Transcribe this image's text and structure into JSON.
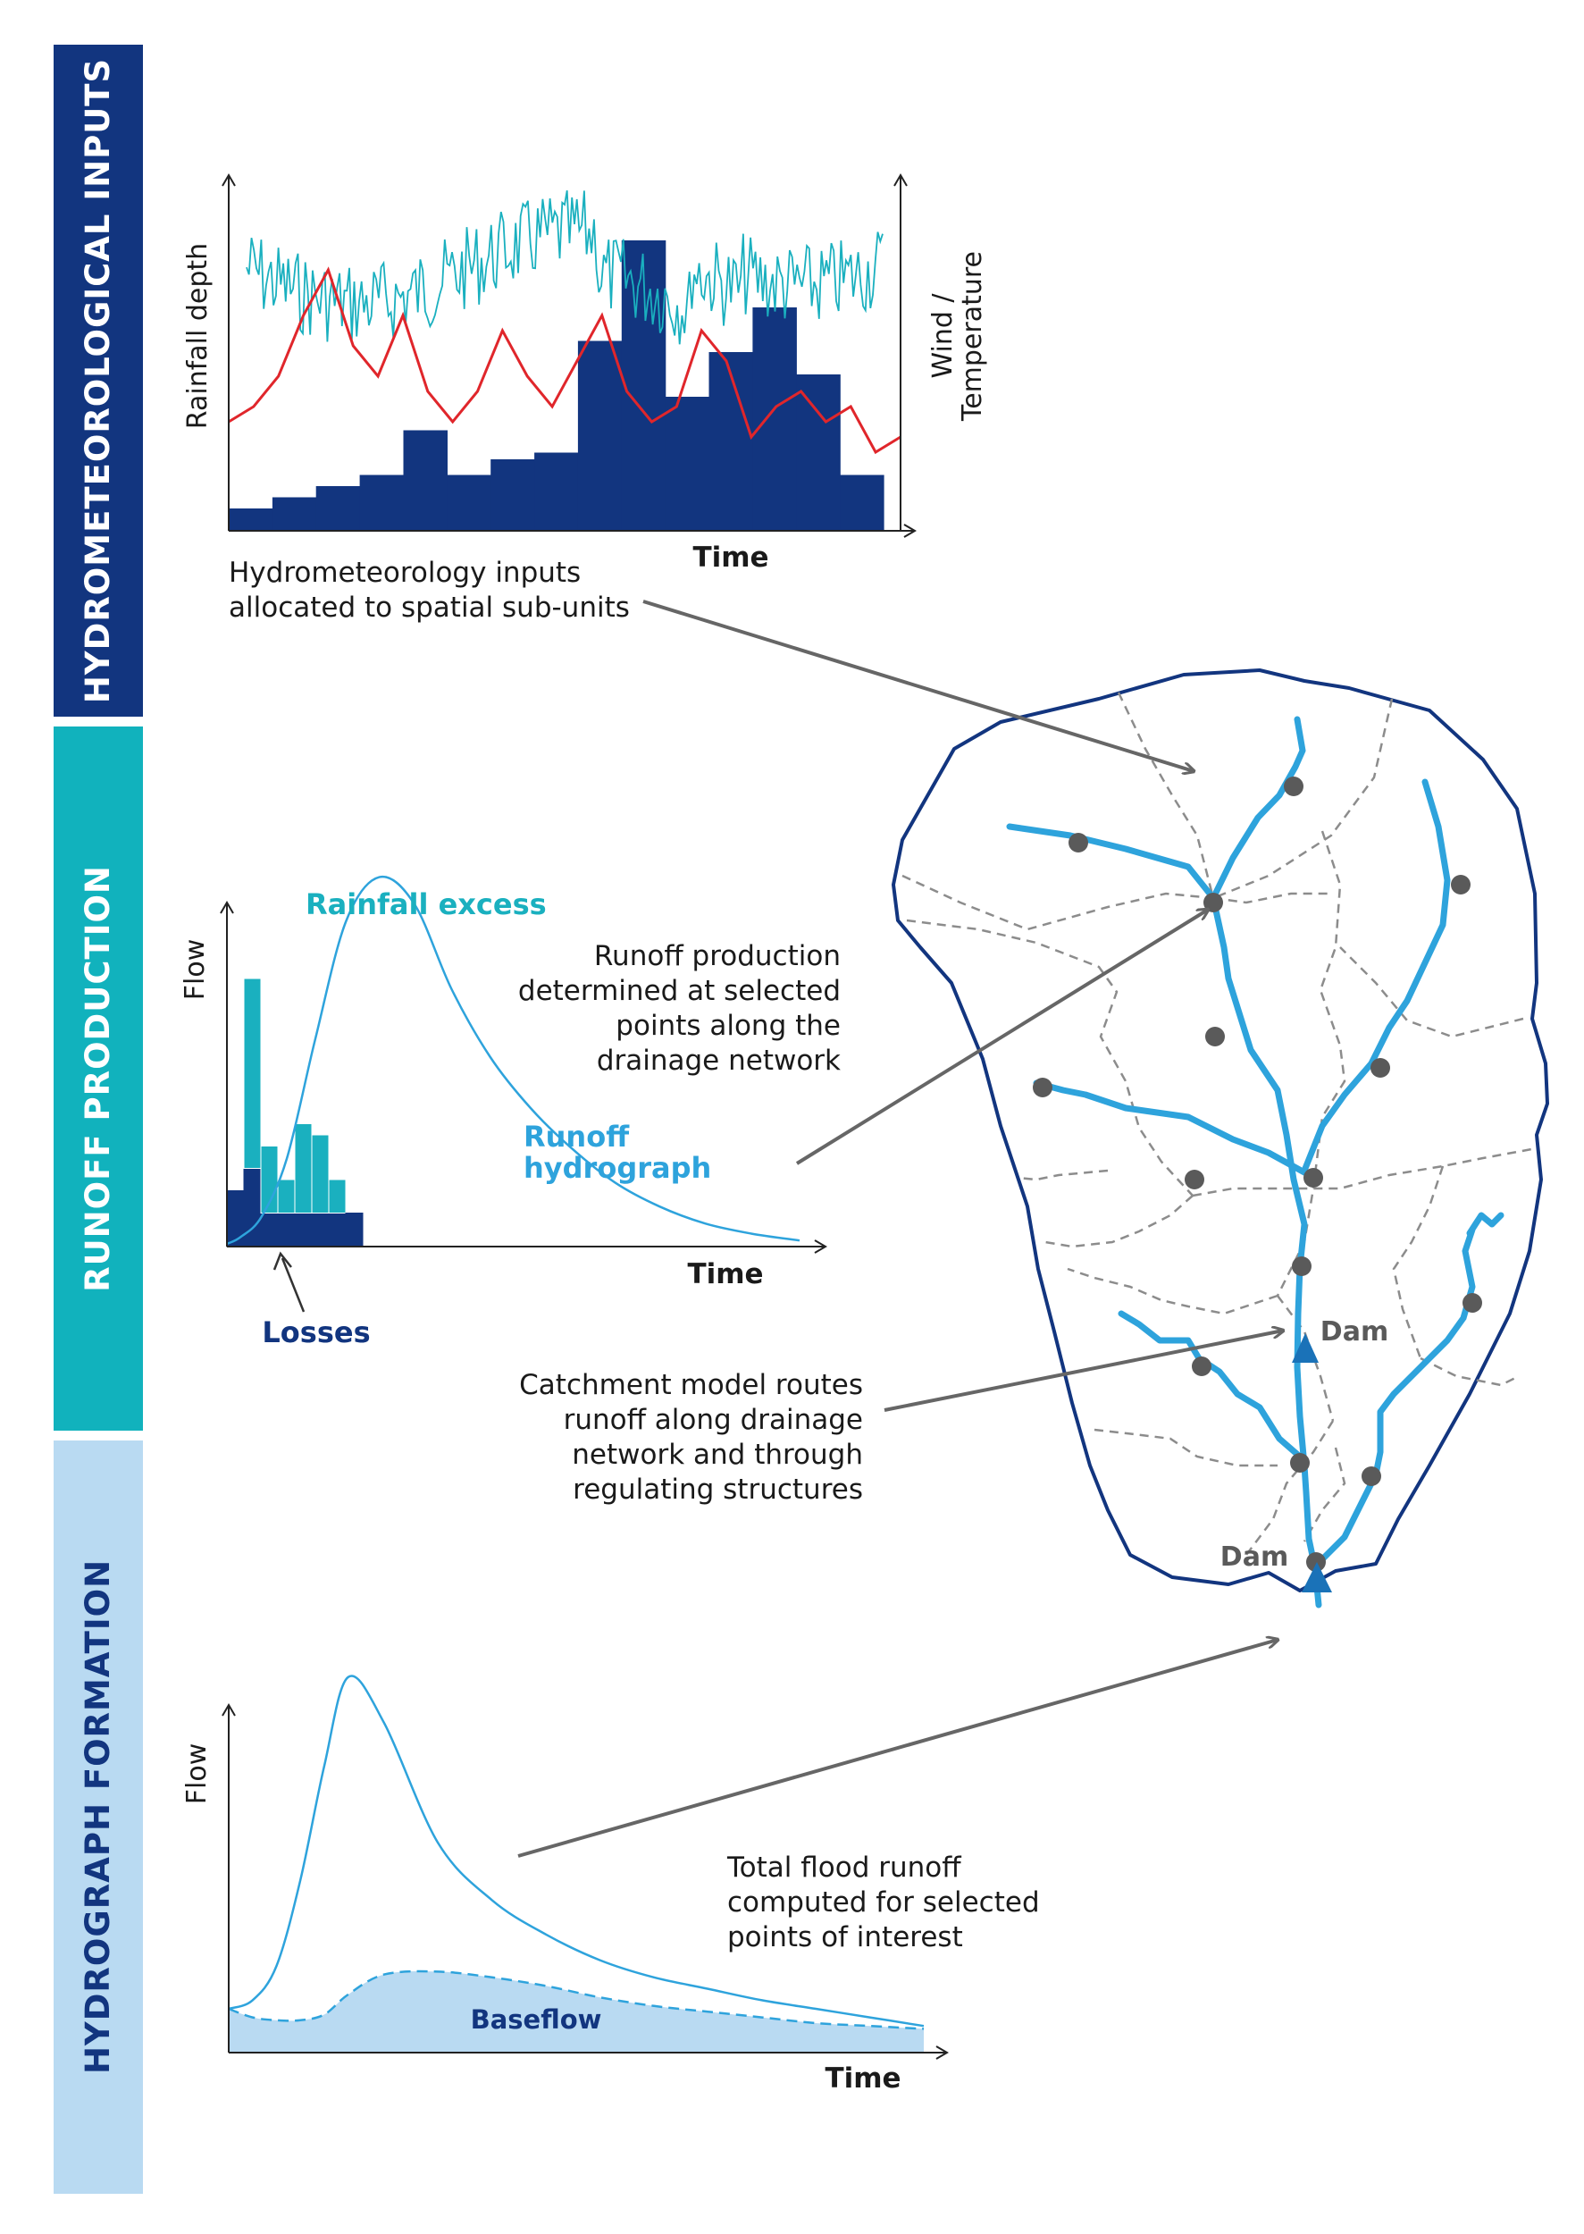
{
  "bands": [
    {
      "label": "HYDROMETEOROLOGICAL INPUTS",
      "color": "#12357f",
      "text_color": "#ffffff"
    },
    {
      "label": "RUNOFF PRODUCTION",
      "color": "#11b2bd",
      "text_color": "#ffffff"
    },
    {
      "label": "HYDROGRAPH FORMATION",
      "color": "#b9daf2",
      "text_color": "#12357f"
    }
  ],
  "chart1": {
    "ylabel": "Rainfall depth",
    "y2label_line1": "Wind /",
    "y2label_line2": "Temperature",
    "xlabel": "Time",
    "caption_line1": "Hydrometeorology inputs",
    "caption_line2": "allocated to spatial sub-units"
  },
  "chart2": {
    "ylabel": "Flow",
    "xlabel": "Time",
    "rainfall_excess_label": "Rainfall excess",
    "runoff_label_line1": "Runoff",
    "runoff_label_line2": "hydrograph",
    "losses_label": "Losses"
  },
  "chart3": {
    "ylabel": "Flow",
    "xlabel": "Time",
    "baseflow_label": "Baseflow"
  },
  "notes": {
    "runoff_production": [
      "Runoff production",
      "determined at selected",
      "points along the",
      "drainage network"
    ],
    "routing": [
      "Catchment model routes",
      "runoff along drainage",
      "network and through",
      "regulating structures"
    ],
    "total_flood": [
      "Total flood runoff",
      "computed for selected",
      "points of interest"
    ]
  },
  "catchment": {
    "dam_upper_label": "Dam",
    "dam_lower_label": "Dam"
  },
  "colors": {
    "navy": "#12357f",
    "teal": "#1ab0bf",
    "river": "#2ea3dc",
    "red": "#e0262b",
    "node": "#5a5a5a",
    "arrow": "#666666",
    "dash": "#8c8c8c",
    "baseflow_fill": "#b9daf2"
  },
  "chart_data": [
    {
      "type": "bar",
      "description": "Hydrometeorological inputs: rainfall depth bars with wind/temperature traces",
      "title": "",
      "xlabel": "Time",
      "ylabel": "Rainfall depth",
      "y2label": "Wind / Temperature",
      "values": [
        1,
        1.5,
        2,
        2.5,
        4.5,
        2.5,
        3.2,
        3.5,
        8.5,
        13,
        6,
        8,
        10,
        7,
        2.5
      ],
      "red_series": [
        4,
        5,
        7,
        11,
        14,
        9,
        7,
        11,
        6,
        4,
        6,
        10,
        7,
        5,
        8,
        11,
        6,
        4,
        5,
        10,
        8,
        3,
        5,
        6,
        4,
        5,
        2,
        3
      ],
      "teal_series_note": "high-frequency noisy trace in upper half"
    },
    {
      "type": "bar",
      "description": "Runoff production: rainfall excess and losses bars with runoff hydrograph curve",
      "xlabel": "Time",
      "ylabel": "Flow",
      "series": [
        {
          "name": "Losses",
          "values": [
            2.5,
            3.5,
            1.5,
            1.5,
            1.5,
            1.5,
            1.5,
            1.5
          ]
        },
        {
          "name": "Rainfall excess",
          "values": [
            0,
            8.5,
            3.0,
            1.5,
            4.0,
            3.5,
            1.5,
            0
          ]
        }
      ],
      "runoff_hydrograph": [
        0,
        0.2,
        0.8,
        2.5,
        6,
        9.5,
        10.8,
        10,
        7.5,
        5.5,
        4,
        2.8,
        1.8,
        1.1,
        0.6,
        0.3,
        0.1
      ]
    },
    {
      "type": "area",
      "description": "Hydrograph formation: total flood runoff with baseflow",
      "xlabel": "Time",
      "ylabel": "Flow",
      "series": [
        {
          "name": "Total runoff",
          "values": [
            1,
            1.3,
            2.5,
            5.5,
            9.5,
            12.6,
            11,
            6.8,
            4.8,
            3.6,
            2.7,
            2.1,
            1.7,
            1.3,
            1.0,
            0.7,
            0.4
          ]
        },
        {
          "name": "Baseflow",
          "values": [
            1,
            0.7,
            0.6,
            0.6,
            0.8,
            1.5,
            2.2,
            2.3,
            2.1,
            1.8,
            1.4,
            1.1,
            0.9,
            0.7,
            0.5,
            0.4,
            0.3
          ]
        }
      ]
    }
  ]
}
